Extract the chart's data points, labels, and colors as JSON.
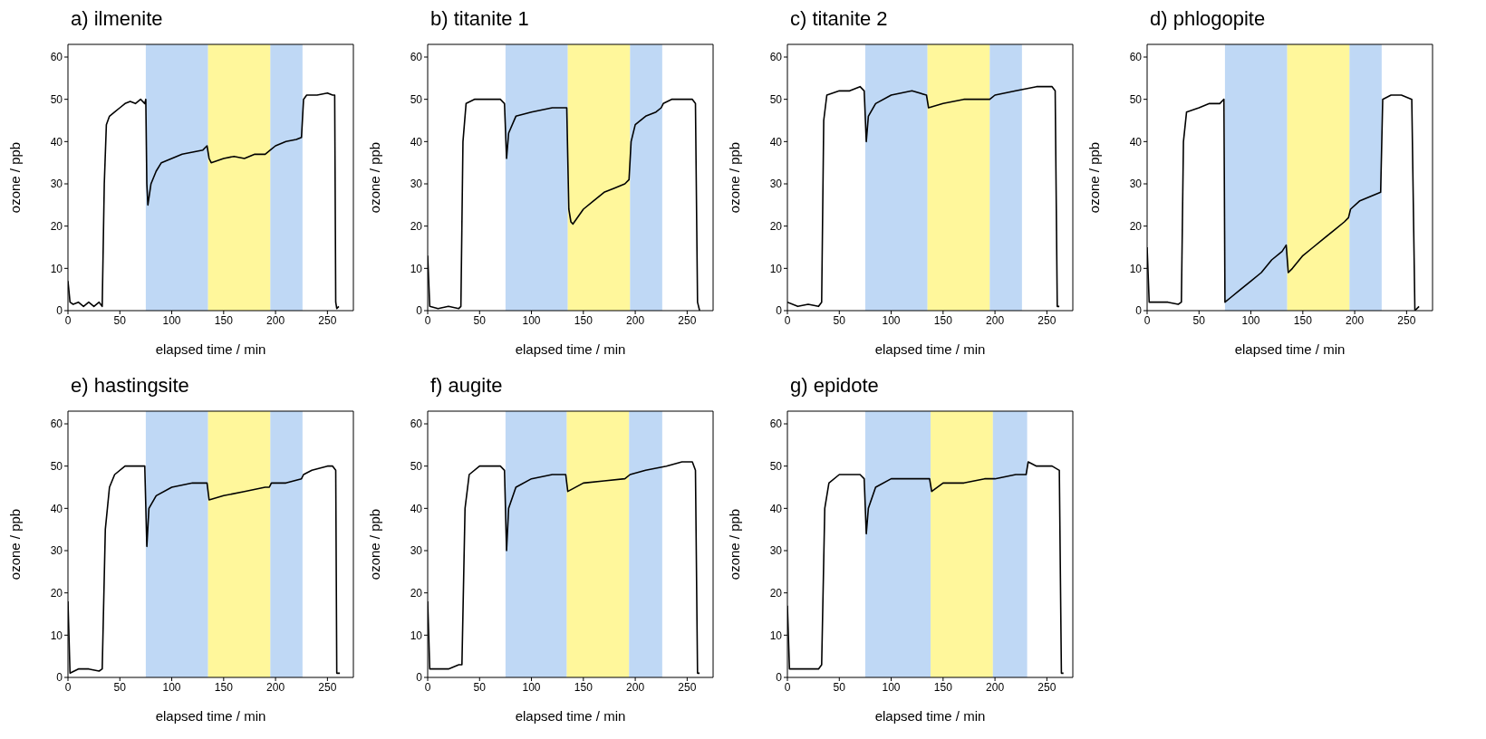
{
  "chart_data": [
    {
      "type": "line",
      "title": "a) ilmenite",
      "xlabel": "elapsed time / min",
      "ylabel": "ozone / ppb",
      "xlim": [
        0,
        275
      ],
      "ylim": [
        0,
        63
      ],
      "xticks": [
        0,
        50,
        100,
        150,
        200,
        250
      ],
      "yticks": [
        0,
        10,
        20,
        30,
        40,
        50,
        60
      ],
      "bands": [
        {
          "axis": "x",
          "from": 75,
          "to": 135,
          "color": "#a9cbf2"
        },
        {
          "axis": "x",
          "from": 135,
          "to": 195,
          "color": "#fff47a"
        },
        {
          "axis": "x",
          "from": 195,
          "to": 226,
          "color": "#a9cbf2"
        }
      ],
      "series": [
        {
          "color": "#000000",
          "x": [
            0,
            2,
            5,
            10,
            15,
            20,
            25,
            30,
            33,
            35,
            37,
            40,
            45,
            50,
            55,
            60,
            65,
            70,
            74,
            75,
            76,
            77,
            80,
            85,
            90,
            100,
            110,
            120,
            130,
            134,
            136,
            138,
            150,
            160,
            170,
            180,
            190,
            195,
            200,
            210,
            220,
            225,
            227,
            230,
            240,
            250,
            255,
            257,
            258,
            259,
            261
          ],
          "values": [
            7,
            2,
            1.5,
            2,
            1,
            2,
            1,
            2,
            1,
            30,
            44,
            46,
            47,
            48,
            49,
            49.5,
            49,
            50,
            49,
            50,
            30,
            25,
            30,
            33,
            35,
            36,
            37,
            37.5,
            38,
            39,
            36,
            35,
            36,
            36.5,
            36,
            37,
            37,
            38,
            39,
            40,
            40.5,
            41,
            50,
            51,
            51,
            51.5,
            51,
            51,
            2,
            0.5,
            1
          ]
        }
      ]
    },
    {
      "type": "line",
      "title": "b) titanite 1",
      "xlabel": "elapsed time / min",
      "ylabel": "ozone / ppb",
      "xlim": [
        0,
        275
      ],
      "ylim": [
        0,
        63
      ],
      "xticks": [
        0,
        50,
        100,
        150,
        200,
        250
      ],
      "yticks": [
        0,
        10,
        20,
        30,
        40,
        50,
        60
      ],
      "bands": [
        {
          "axis": "x",
          "from": 75,
          "to": 135,
          "color": "#a9cbf2"
        },
        {
          "axis": "x",
          "from": 135,
          "to": 195,
          "color": "#fff47a"
        },
        {
          "axis": "x",
          "from": 195,
          "to": 226,
          "color": "#a9cbf2"
        }
      ],
      "series": [
        {
          "color": "#000000",
          "x": [
            0,
            2,
            10,
            20,
            30,
            32,
            34,
            37,
            45,
            60,
            70,
            74,
            76,
            78,
            85,
            100,
            120,
            130,
            134,
            136,
            138,
            140,
            150,
            160,
            170,
            180,
            190,
            194,
            196,
            200,
            210,
            220,
            225,
            227,
            235,
            245,
            255,
            258,
            260,
            262
          ],
          "values": [
            13,
            1,
            0.5,
            1,
            0.5,
            1,
            40,
            49,
            50,
            50,
            50,
            49,
            36,
            42,
            46,
            47,
            48,
            48,
            48,
            24,
            21,
            20.5,
            24,
            26,
            28,
            29,
            30,
            31,
            40,
            44,
            46,
            47,
            48,
            49,
            50,
            50,
            50,
            49,
            2,
            0
          ]
        }
      ]
    },
    {
      "type": "line",
      "title": "c) titanite 2",
      "xlabel": "elapsed time / min",
      "ylabel": "ozone / ppb",
      "xlim": [
        0,
        275
      ],
      "ylim": [
        0,
        63
      ],
      "xticks": [
        0,
        50,
        100,
        150,
        200,
        250
      ],
      "yticks": [
        0,
        10,
        20,
        30,
        40,
        50,
        60
      ],
      "bands": [
        {
          "axis": "x",
          "from": 75,
          "to": 135,
          "color": "#a9cbf2"
        },
        {
          "axis": "x",
          "from": 135,
          "to": 195,
          "color": "#fff47a"
        },
        {
          "axis": "x",
          "from": 195,
          "to": 226,
          "color": "#a9cbf2"
        }
      ],
      "series": [
        {
          "color": "#000000",
          "x": [
            0,
            10,
            20,
            30,
            33,
            35,
            38,
            50,
            60,
            70,
            74,
            76,
            78,
            85,
            100,
            120,
            134,
            136,
            150,
            170,
            190,
            195,
            200,
            220,
            240,
            255,
            258,
            260,
            262
          ],
          "values": [
            2,
            1,
            1.5,
            1,
            2,
            45,
            51,
            52,
            52,
            53,
            52,
            40,
            46,
            49,
            51,
            52,
            51,
            48,
            49,
            50,
            50,
            50,
            51,
            52,
            53,
            53,
            52,
            1,
            1
          ]
        }
      ]
    },
    {
      "type": "line",
      "title": "d) phlogopite",
      "xlabel": "elapsed time / min",
      "ylabel": "ozone / ppb",
      "xlim": [
        0,
        275
      ],
      "ylim": [
        0,
        63
      ],
      "xticks": [
        0,
        50,
        100,
        150,
        200,
        250
      ],
      "yticks": [
        0,
        10,
        20,
        30,
        40,
        50,
        60
      ],
      "bands": [
        {
          "axis": "x",
          "from": 75,
          "to": 135,
          "color": "#a9cbf2"
        },
        {
          "axis": "x",
          "from": 135,
          "to": 195,
          "color": "#fff47a"
        },
        {
          "axis": "x",
          "from": 195,
          "to": 226,
          "color": "#a9cbf2"
        }
      ],
      "series": [
        {
          "color": "#000000",
          "x": [
            0,
            2,
            10,
            20,
            30,
            33,
            35,
            38,
            50,
            60,
            70,
            74,
            75,
            80,
            90,
            100,
            110,
            120,
            130,
            134,
            136,
            140,
            150,
            160,
            170,
            180,
            190,
            194,
            196,
            205,
            215,
            225,
            227,
            235,
            245,
            255,
            258,
            262
          ],
          "values": [
            15,
            2,
            2,
            2,
            1.5,
            2,
            40,
            47,
            48,
            49,
            49,
            50,
            2,
            3,
            5,
            7,
            9,
            12,
            14,
            15.5,
            9,
            10,
            13,
            15,
            17,
            19,
            21,
            22,
            24,
            26,
            27,
            28,
            50,
            51,
            51,
            50,
            0,
            1
          ]
        }
      ]
    },
    {
      "type": "line",
      "title": "e) hastingsite",
      "xlabel": "elapsed time / min",
      "ylabel": "ozone / ppb",
      "xlim": [
        0,
        275
      ],
      "ylim": [
        0,
        63
      ],
      "xticks": [
        0,
        50,
        100,
        150,
        200,
        250
      ],
      "yticks": [
        0,
        10,
        20,
        30,
        40,
        50,
        60
      ],
      "bands": [
        {
          "axis": "x",
          "from": 75,
          "to": 135,
          "color": "#a9cbf2"
        },
        {
          "axis": "x",
          "from": 135,
          "to": 195,
          "color": "#fff47a"
        },
        {
          "axis": "x",
          "from": 195,
          "to": 226,
          "color": "#a9cbf2"
        }
      ],
      "series": [
        {
          "color": "#000000",
          "x": [
            0,
            2,
            10,
            20,
            30,
            33,
            36,
            40,
            45,
            55,
            70,
            74,
            76,
            78,
            85,
            100,
            120,
            134,
            136,
            150,
            170,
            190,
            194,
            196,
            210,
            225,
            227,
            235,
            250,
            255,
            258,
            259,
            262
          ],
          "values": [
            18,
            1,
            2,
            2,
            1.5,
            2,
            35,
            45,
            48,
            50,
            50,
            50,
            31,
            40,
            43,
            45,
            46,
            46,
            42,
            43,
            44,
            45,
            45,
            46,
            46,
            47,
            48,
            49,
            50,
            50,
            49,
            1,
            1
          ]
        }
      ]
    },
    {
      "type": "line",
      "title": "f) augite",
      "xlabel": "elapsed time / min",
      "ylabel": "ozone / ppb",
      "xlim": [
        0,
        275
      ],
      "ylim": [
        0,
        63
      ],
      "xticks": [
        0,
        50,
        100,
        150,
        200,
        250
      ],
      "yticks": [
        0,
        10,
        20,
        30,
        40,
        50,
        60
      ],
      "bands": [
        {
          "axis": "x",
          "from": 75,
          "to": 134,
          "color": "#a9cbf2"
        },
        {
          "axis": "x",
          "from": 134,
          "to": 194,
          "color": "#fff47a"
        },
        {
          "axis": "x",
          "from": 194,
          "to": 226,
          "color": "#a9cbf2"
        }
      ],
      "series": [
        {
          "color": "#000000",
          "x": [
            0,
            2,
            10,
            20,
            30,
            33,
            36,
            40,
            50,
            60,
            70,
            74,
            76,
            78,
            85,
            100,
            120,
            133,
            135,
            150,
            170,
            190,
            195,
            210,
            230,
            245,
            255,
            258,
            260,
            262
          ],
          "values": [
            18,
            2,
            2,
            2,
            3,
            3,
            40,
            48,
            50,
            50,
            50,
            49,
            30,
            40,
            45,
            47,
            48,
            48,
            44,
            46,
            46.5,
            47,
            48,
            49,
            50,
            51,
            51,
            49,
            1,
            1
          ]
        }
      ]
    },
    {
      "type": "line",
      "title": "g) epidote",
      "xlabel": "elapsed time / min",
      "ylabel": "ozone / ppb",
      "xlim": [
        0,
        275
      ],
      "ylim": [
        0,
        63
      ],
      "xticks": [
        0,
        50,
        100,
        150,
        200,
        250
      ],
      "yticks": [
        0,
        10,
        20,
        30,
        40,
        50,
        60
      ],
      "bands": [
        {
          "axis": "x",
          "from": 75,
          "to": 138,
          "color": "#a9cbf2"
        },
        {
          "axis": "x",
          "from": 138,
          "to": 198,
          "color": "#fff47a"
        },
        {
          "axis": "x",
          "from": 198,
          "to": 231,
          "color": "#a9cbf2"
        }
      ],
      "series": [
        {
          "color": "#000000",
          "x": [
            0,
            2,
            10,
            20,
            30,
            33,
            36,
            40,
            50,
            60,
            70,
            74,
            76,
            78,
            85,
            100,
            120,
            137,
            139,
            150,
            170,
            190,
            197,
            200,
            220,
            230,
            232,
            240,
            255,
            262,
            264,
            266
          ],
          "values": [
            17,
            2,
            2,
            2,
            2,
            3,
            40,
            46,
            48,
            48,
            48,
            47,
            34,
            40,
            45,
            47,
            47,
            47,
            44,
            46,
            46,
            47,
            47,
            47,
            48,
            48,
            51,
            50,
            50,
            49,
            1,
            1
          ]
        }
      ]
    }
  ]
}
